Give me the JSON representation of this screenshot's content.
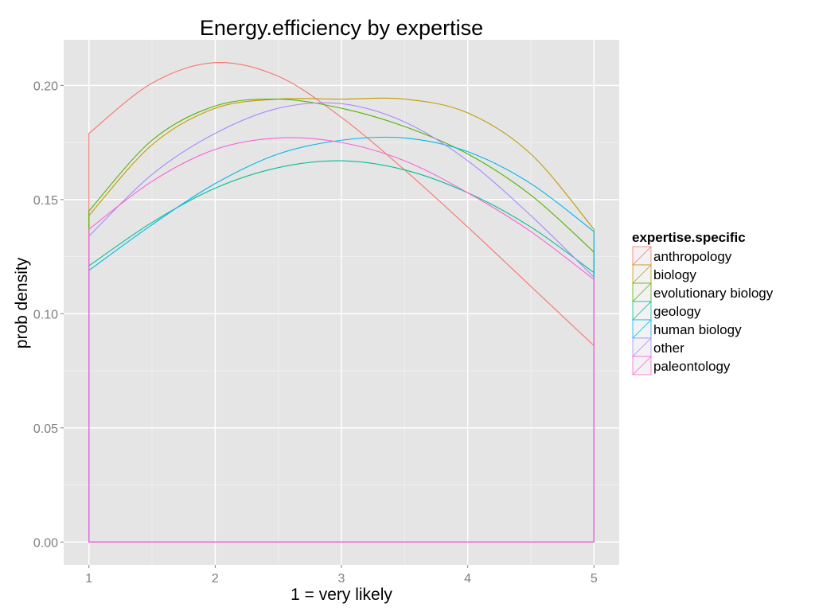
{
  "chart_data": {
    "type": "line",
    "title": "Energy.efficiency  by expertise",
    "xlabel": "1 = very likely",
    "ylabel": "prob density",
    "xlim": [
      0.8,
      5.2
    ],
    "ylim": [
      -0.01,
      0.22
    ],
    "x_ticks": [
      1,
      2,
      3,
      4,
      5
    ],
    "x_tick_labels": [
      "1",
      "2",
      "3",
      "4",
      "5"
    ],
    "y_ticks": [
      0.0,
      0.05,
      0.1,
      0.15,
      0.2
    ],
    "y_tick_labels": [
      "0.00",
      "0.05",
      "0.10",
      "0.15",
      "0.20"
    ],
    "grid": true,
    "density_closed_to_zero": true,
    "legend": {
      "title": "expertise.specific",
      "position": "right"
    },
    "x": [
      1,
      1.5,
      2,
      2.5,
      3,
      3.5,
      4,
      4.5,
      5
    ],
    "series": [
      {
        "name": "anthropology",
        "color": "#F8766D",
        "values": [
          0.179,
          0.201,
          0.21,
          0.204,
          0.186,
          0.163,
          0.138,
          0.112,
          0.086
        ]
      },
      {
        "name": "biology",
        "color": "#C49A00",
        "values": [
          0.143,
          0.174,
          0.19,
          0.194,
          0.194,
          0.194,
          0.188,
          0.17,
          0.137
        ]
      },
      {
        "name": "evolutionary biology",
        "color": "#53B400",
        "values": [
          0.145,
          0.176,
          0.191,
          0.194,
          0.19,
          0.182,
          0.17,
          0.152,
          0.127
        ]
      },
      {
        "name": "geology",
        "color": "#00C094",
        "values": [
          0.121,
          0.14,
          0.155,
          0.164,
          0.167,
          0.163,
          0.153,
          0.138,
          0.118
        ]
      },
      {
        "name": "human biology",
        "color": "#00B6EB",
        "values": [
          0.119,
          0.139,
          0.157,
          0.17,
          0.176,
          0.177,
          0.171,
          0.157,
          0.136
        ]
      },
      {
        "name": "other",
        "color": "#A58AFF",
        "values": [
          0.134,
          0.161,
          0.179,
          0.19,
          0.192,
          0.184,
          0.167,
          0.143,
          0.116
        ]
      },
      {
        "name": "paleontology",
        "color": "#FB61D7",
        "values": [
          0.137,
          0.158,
          0.172,
          0.177,
          0.175,
          0.167,
          0.153,
          0.136,
          0.115
        ]
      }
    ]
  }
}
